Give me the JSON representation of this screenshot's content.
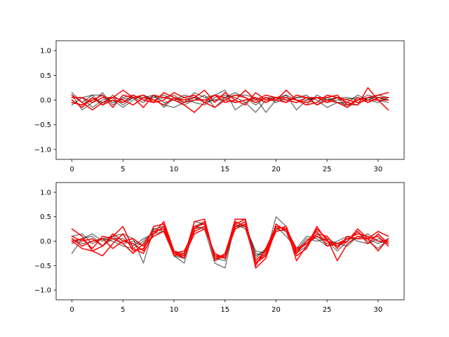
{
  "chart_data": [
    {
      "type": "line",
      "ylim": [
        -1.2,
        1.2
      ],
      "xlim": [
        -1.55,
        32.55
      ],
      "x_ticks": [
        0,
        5,
        10,
        15,
        20,
        25,
        30
      ],
      "x_tick_labels": [
        "0",
        "5",
        "10",
        "15",
        "20",
        "25",
        "30"
      ],
      "y_ticks": [
        -1.0,
        -0.5,
        0.0,
        0.5,
        1.0
      ],
      "y_tick_labels": [
        "−1.0",
        "−0.5",
        "0.0",
        "0.5",
        "1.0"
      ],
      "grid": false,
      "x": [
        0,
        1,
        2,
        3,
        4,
        5,
        6,
        7,
        8,
        9,
        10,
        11,
        12,
        13,
        14,
        15,
        16,
        17,
        18,
        19,
        20,
        21,
        22,
        23,
        24,
        25,
        26,
        27,
        28,
        29,
        30,
        31
      ],
      "series": [
        {
          "color": "#000000",
          "opacity": 0.5,
          "values": [
            0.15,
            -0.05,
            0.1,
            0.1,
            -0.05,
            0.02,
            0.05,
            0.1,
            0.0,
            -0.1,
            -0.15,
            -0.05,
            0.15,
            0.05,
            0.1,
            0.2,
            -0.2,
            -0.05,
            -0.25,
            0.0,
            0.05,
            0.1,
            -0.2,
            0.0,
            0.05,
            -0.05,
            0.0,
            0.02,
            0.05,
            0.0,
            0.1,
            0.05
          ]
        },
        {
          "color": "#000000",
          "opacity": 0.5,
          "values": [
            0.1,
            -0.2,
            -0.05,
            0.15,
            -0.1,
            0.05,
            0.1,
            0.0,
            0.05,
            0.1,
            0.0,
            0.05,
            -0.05,
            -0.1,
            0.05,
            0.1,
            0.05,
            -0.05,
            0.05,
            -0.25,
            0.0,
            0.1,
            0.0,
            -0.1,
            0.1,
            0.0,
            0.05,
            0.05,
            0.0,
            0.1,
            0.05,
            0.0
          ]
        },
        {
          "color": "#000000",
          "opacity": 0.5,
          "values": [
            0.05,
            0.05,
            -0.15,
            0.0,
            0.05,
            -0.1,
            0.05,
            0.05,
            0.1,
            -0.15,
            0.05,
            -0.1,
            0.0,
            0.1,
            -0.15,
            0.05,
            0.15,
            0.05,
            -0.1,
            0.05,
            0.05,
            -0.05,
            0.05,
            0.1,
            -0.1,
            0.05,
            -0.05,
            -0.05,
            0.1,
            0.0,
            -0.05,
            0.05
          ]
        },
        {
          "color": "#000000",
          "opacity": 0.5,
          "values": [
            -0.05,
            -0.1,
            0.05,
            -0.05,
            0.0,
            -0.15,
            0.0,
            0.1,
            0.0,
            0.05,
            0.1,
            -0.05,
            0.05,
            0.0,
            0.0,
            0.05,
            0.1,
            0.1,
            0.05,
            -0.05,
            0.05,
            0.0,
            0.05,
            0.05,
            0.0,
            -0.15,
            -0.05,
            -0.1,
            -0.1,
            0.05,
            0.0,
            -0.05
          ]
        },
        {
          "color": "#000000",
          "opacity": 0.5,
          "values": [
            -0.1,
            0.05,
            0.1,
            -0.1,
            0.1,
            -0.05,
            0.05,
            -0.05,
            0.1,
            -0.05,
            0.0,
            0.1,
            0.05,
            -0.05,
            0.0,
            0.0,
            -0.05,
            0.0,
            0.0,
            0.05,
            -0.05,
            0.05,
            0.0,
            0.0,
            0.05,
            0.0,
            0.05,
            -0.15,
            0.0,
            0.05,
            0.05,
            0.0
          ]
        },
        {
          "color": "#ff0000",
          "opacity": 1.0,
          "values": [
            0.1,
            -0.05,
            -0.2,
            -0.05,
            0.05,
            0.2,
            0.05,
            -0.15,
            0.1,
            0.05,
            0.0,
            -0.1,
            -0.25,
            -0.05,
            0.1,
            -0.05,
            0.0,
            0.2,
            0.0,
            0.1,
            0.05,
            0.05,
            0.0,
            -0.1,
            -0.05,
            0.1,
            0.05,
            -0.05,
            -0.1,
            0.25,
            0.0,
            -0.2
          ]
        },
        {
          "color": "#ff0000",
          "opacity": 1.0,
          "values": [
            -0.05,
            -0.1,
            0.0,
            0.1,
            -0.15,
            0.1,
            0.05,
            0.1,
            -0.05,
            0.15,
            0.05,
            0.0,
            0.05,
            0.2,
            -0.05,
            0.15,
            0.0,
            -0.1,
            0.15,
            0.0,
            0.0,
            0.2,
            0.0,
            -0.05,
            0.05,
            0.05,
            0.1,
            -0.1,
            0.0,
            0.05,
            0.1,
            0.15
          ]
        },
        {
          "color": "#ff0000",
          "opacity": 1.0,
          "values": [
            0.0,
            -0.15,
            0.05,
            -0.1,
            0.0,
            -0.05,
            0.1,
            0.0,
            -0.05,
            0.0,
            0.15,
            0.05,
            0.1,
            -0.05,
            -0.15,
            0.0,
            0.1,
            0.05,
            -0.05,
            0.05,
            0.0,
            -0.05,
            0.1,
            0.05,
            -0.1,
            0.0,
            -0.05,
            -0.15,
            0.05,
            -0.05,
            0.05,
            0.05
          ]
        },
        {
          "color": "#ff0000",
          "opacity": 1.0,
          "values": [
            0.05,
            0.05,
            -0.05,
            0.05,
            0.05,
            0.0,
            -0.1,
            0.05,
            0.0,
            -0.1,
            0.05,
            -0.05,
            0.0,
            0.0,
            0.1,
            0.05,
            -0.05,
            0.0,
            0.05,
            -0.05,
            0.05,
            0.0,
            -0.05,
            0.05,
            0.05,
            -0.05,
            0.05,
            0.0,
            -0.05,
            0.0,
            0.0,
            0.0
          ]
        }
      ]
    },
    {
      "type": "line",
      "ylim": [
        -1.2,
        1.2
      ],
      "xlim": [
        -1.55,
        32.55
      ],
      "x_ticks": [
        0,
        5,
        10,
        15,
        20,
        25,
        30
      ],
      "x_tick_labels": [
        "0",
        "5",
        "10",
        "15",
        "20",
        "25",
        "30"
      ],
      "y_ticks": [
        -1.0,
        -0.5,
        0.0,
        0.5,
        1.0
      ],
      "y_tick_labels": [
        "−1.0",
        "−0.5",
        "0.0",
        "0.5",
        "1.0"
      ],
      "grid": false,
      "x": [
        0,
        1,
        2,
        3,
        4,
        5,
        6,
        7,
        8,
        9,
        10,
        11,
        12,
        13,
        14,
        15,
        16,
        17,
        18,
        19,
        20,
        21,
        22,
        23,
        24,
        25,
        26,
        27,
        28,
        29,
        30,
        31
      ],
      "series": [
        {
          "color": "#000000",
          "opacity": 0.5,
          "values": [
            -0.25,
            0.05,
            0.15,
            0.0,
            0.1,
            0.15,
            0.05,
            -0.45,
            0.25,
            0.3,
            -0.3,
            -0.45,
            0.3,
            0.25,
            -0.45,
            -0.55,
            0.4,
            0.3,
            -0.25,
            -0.3,
            0.5,
            0.3,
            -0.25,
            -0.1,
            0.15,
            0.0,
            -0.2,
            0.0,
            0.2,
            0.0,
            -0.15,
            0.05
          ]
        },
        {
          "color": "#000000",
          "opacity": 0.5,
          "values": [
            0.1,
            0.15,
            -0.05,
            0.05,
            0.0,
            -0.1,
            -0.15,
            0.0,
            0.2,
            0.25,
            -0.25,
            -0.3,
            0.4,
            0.35,
            -0.35,
            -0.4,
            0.3,
            0.35,
            -0.3,
            -0.2,
            0.2,
            0.25,
            -0.2,
            0.0,
            0.1,
            -0.05,
            -0.1,
            0.05,
            0.05,
            0.15,
            0.0,
            -0.05
          ]
        },
        {
          "color": "#000000",
          "opacity": 0.5,
          "values": [
            -0.05,
            0.05,
            0.1,
            -0.1,
            0.05,
            0.05,
            -0.1,
            0.05,
            0.15,
            0.2,
            -0.2,
            -0.25,
            0.3,
            0.4,
            -0.4,
            -0.3,
            0.35,
            0.25,
            -0.35,
            -0.15,
            0.3,
            0.1,
            -0.15,
            0.1,
            0.05,
            -0.1,
            0.0,
            0.1,
            0.0,
            -0.05,
            0.05,
            0.0
          ]
        },
        {
          "color": "#000000",
          "opacity": 0.5,
          "values": [
            0.05,
            -0.05,
            0.0,
            0.05,
            0.1,
            -0.05,
            0.0,
            -0.1,
            0.25,
            0.2,
            -0.3,
            -0.35,
            0.25,
            0.3,
            -0.3,
            -0.35,
            0.3,
            0.3,
            -0.2,
            -0.25,
            0.25,
            0.2,
            -0.2,
            0.05,
            0.0,
            0.05,
            -0.05,
            -0.1,
            0.1,
            0.05,
            -0.05,
            0.05
          ]
        },
        {
          "color": "#ff0000",
          "opacity": 1.0,
          "values": [
            0.25,
            0.1,
            -0.2,
            -0.3,
            -0.05,
            0.15,
            -0.2,
            -0.15,
            0.15,
            0.4,
            -0.2,
            -0.35,
            0.4,
            0.45,
            -0.35,
            -0.3,
            0.45,
            0.45,
            -0.55,
            -0.35,
            0.25,
            0.3,
            -0.4,
            -0.1,
            0.3,
            0.0,
            -0.1,
            0.0,
            0.25,
            0.05,
            0.2,
            0.1
          ]
        },
        {
          "color": "#ff0000",
          "opacity": 1.0,
          "values": [
            0.0,
            -0.15,
            -0.2,
            -0.1,
            0.15,
            0.0,
            -0.05,
            -0.2,
            0.3,
            0.35,
            -0.25,
            -0.35,
            0.25,
            0.4,
            -0.4,
            -0.25,
            0.4,
            0.3,
            -0.45,
            -0.3,
            0.35,
            0.2,
            -0.3,
            -0.15,
            0.25,
            0.05,
            -0.4,
            -0.05,
            0.1,
            0.05,
            0.1,
            -0.1
          ]
        },
        {
          "color": "#ff0000",
          "opacity": 1.0,
          "values": [
            0.1,
            0.0,
            0.05,
            -0.1,
            0.1,
            0.3,
            -0.15,
            -0.25,
            0.15,
            0.3,
            -0.3,
            -0.25,
            0.3,
            0.35,
            -0.3,
            -0.35,
            0.35,
            0.45,
            -0.5,
            -0.15,
            0.3,
            0.25,
            -0.2,
            -0.05,
            0.15,
            0.1,
            -0.15,
            0.1,
            0.05,
            0.05,
            -0.2,
            0.05
          ]
        },
        {
          "color": "#ff0000",
          "opacity": 1.0,
          "values": [
            0.0,
            0.05,
            -0.15,
            0.1,
            0.05,
            -0.05,
            -0.25,
            -0.05,
            0.2,
            0.25,
            -0.2,
            -0.3,
            0.15,
            0.25,
            -0.25,
            -0.35,
            0.3,
            0.4,
            -0.4,
            -0.2,
            0.25,
            0.3,
            -0.25,
            0.0,
            0.2,
            -0.1,
            -0.05,
            0.05,
            0.15,
            0.1,
            0.0,
            0.0
          ]
        },
        {
          "color": "#ff0000",
          "opacity": 1.0,
          "values": [
            0.05,
            -0.1,
            0.0,
            0.05,
            -0.15,
            0.0,
            0.05,
            -0.1,
            0.1,
            0.2,
            -0.25,
            -0.2,
            0.2,
            0.3,
            -0.3,
            -0.3,
            0.25,
            0.35,
            -0.45,
            -0.25,
            0.2,
            0.25,
            -0.15,
            -0.05,
            0.1,
            0.0,
            -0.05,
            0.0,
            0.2,
            -0.05,
            0.15,
            -0.05
          ]
        }
      ]
    }
  ]
}
